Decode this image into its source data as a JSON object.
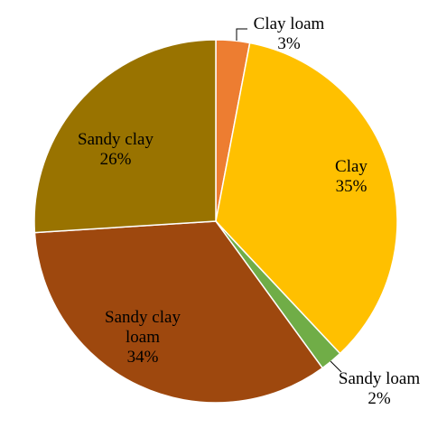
{
  "chart_data": {
    "type": "pie",
    "title": "",
    "start_angle_deg": 0,
    "direction": "clockwise",
    "legend": "none",
    "slices": [
      {
        "name": "Clay loam",
        "value": 3,
        "label": "3%",
        "color": "#ED7D31"
      },
      {
        "name": "Clay",
        "value": 35,
        "label": "35%",
        "color": "#FFC000"
      },
      {
        "name": "Sandy loam",
        "value": 2,
        "label": "2%",
        "color": "#70AD47"
      },
      {
        "name": "Sandy clay loam",
        "value": 34,
        "label": "34%",
        "color": "#9E480E"
      },
      {
        "name": "Sandy clay",
        "value": 26,
        "label": "26%",
        "color": "#997300"
      }
    ]
  }
}
